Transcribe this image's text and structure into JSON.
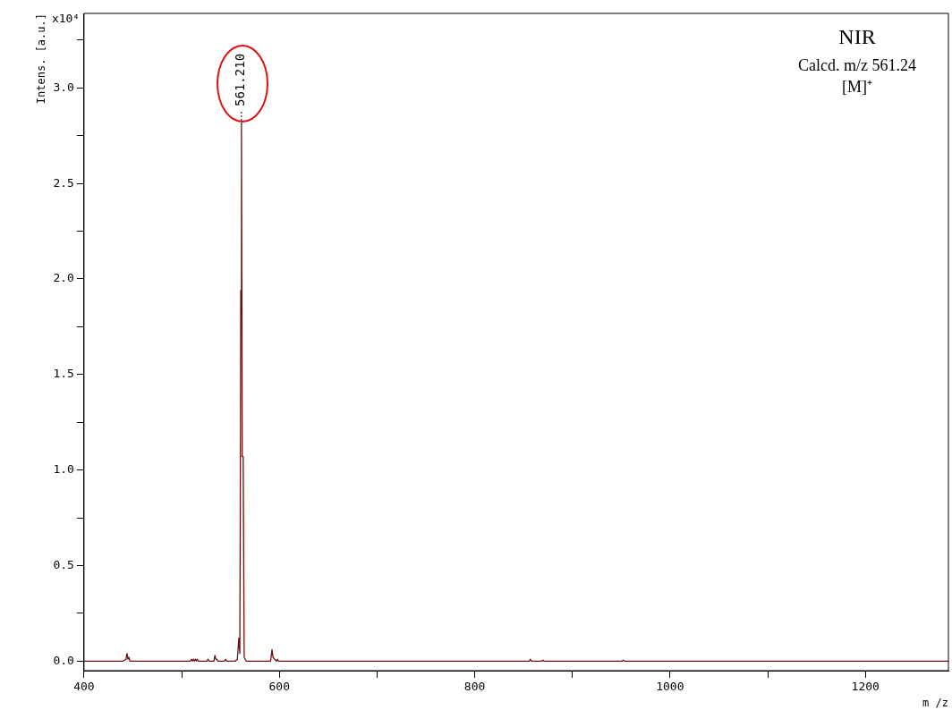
{
  "chart_data": {
    "type": "line",
    "xlabel": "m /z",
    "ylabel": "Intens. [a.u.]",
    "x": [
      400,
      440,
      443,
      444,
      445,
      446,
      447,
      509,
      510,
      511,
      512,
      513,
      514,
      515,
      516,
      517,
      526,
      527,
      528,
      533,
      534,
      535,
      536,
      537,
      544,
      545,
      546,
      555,
      557,
      558.5,
      559.5,
      560,
      560.5,
      561.2,
      562,
      563,
      564,
      566,
      591,
      592.5,
      593.5,
      597,
      598,
      599,
      856,
      857,
      858,
      869,
      870,
      871,
      951,
      952,
      953,
      1285
    ],
    "series": [
      {
        "color": "#6b1010",
        "values": [
          0,
          0,
          0.01,
          0.04,
          0.01,
          0.02,
          0,
          0,
          0.01,
          0,
          0.01,
          0,
          0.01,
          0,
          0.01,
          0,
          0,
          0.01,
          0,
          0,
          0.03,
          0.01,
          0.01,
          0,
          0,
          0.01,
          0,
          0,
          0.01,
          0.12,
          0.04,
          0.8,
          1.94,
          2.81,
          1.07,
          1.07,
          0.02,
          0,
          0,
          0.06,
          0.02,
          0,
          0.01,
          0,
          0,
          0.01,
          0,
          0,
          0.005,
          0,
          0,
          0.005,
          0,
          0
        ]
      }
    ],
    "xlim": [
      400,
      1285
    ],
    "xticks": [
      400,
      {
        "value": 500,
        "label": null
      },
      600,
      {
        "value": 700,
        "label": null
      },
      800,
      {
        "value": 900,
        "label": null
      },
      1000,
      {
        "value": 1100,
        "label": null
      },
      1200
    ],
    "ylim": [
      -0.05,
      3.39
    ],
    "yticks": [
      {
        "value": 0,
        "label": "0.0"
      },
      {
        "value": 0.25,
        "label": null
      },
      {
        "value": 0.5,
        "label": "0.5"
      },
      {
        "value": 0.75,
        "label": null
      },
      {
        "value": 1,
        "label": "1.0"
      },
      {
        "value": 1.25,
        "label": null
      },
      {
        "value": 1.5,
        "label": "1.5"
      },
      {
        "value": 1.75,
        "label": null
      },
      {
        "value": 2,
        "label": "2.0"
      },
      {
        "value": 2.25,
        "label": null
      },
      {
        "value": 2.5,
        "label": "2.5"
      },
      {
        "value": 2.75,
        "label": null
      },
      {
        "value": 3,
        "label": "3.0"
      },
      {
        "value": 3.25,
        "label": null
      }
    ],
    "marker": "none",
    "legend": false,
    "grid": false,
    "annotations": [
      "x10⁴",
      "NIR",
      "Calcd. m/z 561.24",
      "[M]⁺",
      {
        "text": "561.210",
        "x": 561.2,
        "y": 2.81
      }
    ]
  }
}
